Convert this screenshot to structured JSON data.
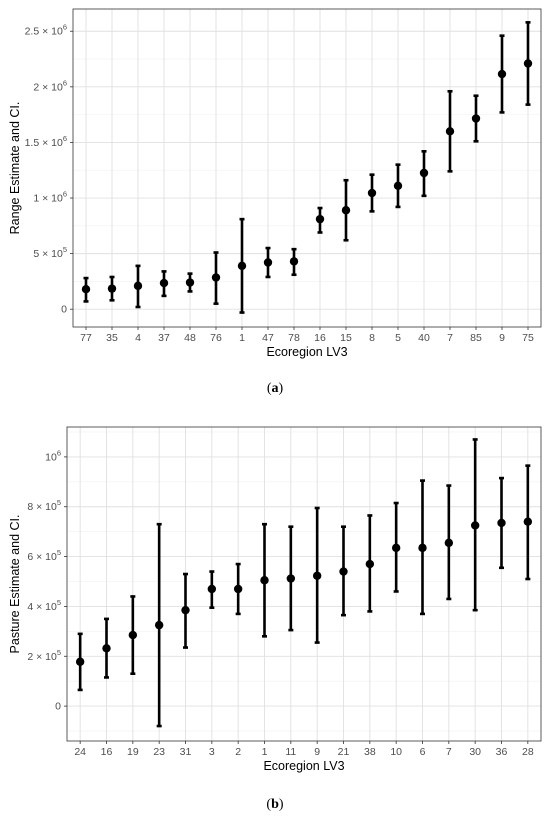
{
  "chart_data": [
    {
      "type": "scatter",
      "xlabel": "Ecoregion LV3",
      "ylabel": "Range Estimate and CI.",
      "caption": "a",
      "categories": [
        "77",
        "35",
        "4",
        "37",
        "48",
        "76",
        "1",
        "47",
        "78",
        "16",
        "15",
        "8",
        "5",
        "40",
        "7",
        "85",
        "9",
        "75"
      ],
      "estimates": [
        180000,
        185000,
        210000,
        235000,
        240000,
        285000,
        390000,
        420000,
        430000,
        810000,
        890000,
        1045000,
        1110000,
        1225000,
        1600000,
        1715000,
        2115000,
        2210000
      ],
      "lower": [
        70000,
        80000,
        20000,
        120000,
        160000,
        50000,
        -30000,
        290000,
        310000,
        690000,
        620000,
        880000,
        920000,
        1020000,
        1240000,
        1510000,
        1770000,
        1840000
      ],
      "upper": [
        280000,
        290000,
        390000,
        340000,
        320000,
        510000,
        810000,
        550000,
        540000,
        910000,
        1160000,
        1210000,
        1300000,
        1420000,
        1960000,
        1920000,
        2460000,
        2580000
      ],
      "yticks": [
        0,
        500000,
        1000000,
        1500000,
        2000000,
        2500000
      ],
      "ytick_labels": [
        {
          "mant": "0",
          "exp": ""
        },
        {
          "mant": "5 × 10",
          "exp": "5"
        },
        {
          "mant": "1 × 10",
          "exp": "6"
        },
        {
          "mant": "1.5 × 10",
          "exp": "6"
        },
        {
          "mant": "2 × 10",
          "exp": "6"
        },
        {
          "mant": "2.5 × 10",
          "exp": "6"
        }
      ],
      "ylim": [
        -160000,
        2700000
      ]
    },
    {
      "type": "scatter",
      "xlabel": "Ecoregion LV3",
      "ylabel": "Pasture Estimate and CI.",
      "caption": "b",
      "categories": [
        "24",
        "16",
        "19",
        "23",
        "31",
        "3",
        "2",
        "1",
        "11",
        "9",
        "21",
        "38",
        "10",
        "6",
        "7",
        "30",
        "36",
        "28"
      ],
      "estimates": [
        178000,
        232000,
        285000,
        325000,
        385000,
        470000,
        470000,
        505000,
        512000,
        523000,
        540000,
        570000,
        635000,
        635000,
        655000,
        725000,
        735000,
        740000
      ],
      "lower": [
        65000,
        115000,
        130000,
        -80000,
        235000,
        395000,
        370000,
        280000,
        305000,
        255000,
        365000,
        380000,
        460000,
        370000,
        430000,
        385000,
        555000,
        510000
      ],
      "upper": [
        290000,
        350000,
        440000,
        730000,
        530000,
        540000,
        570000,
        730000,
        720000,
        795000,
        720000,
        765000,
        815000,
        905000,
        885000,
        1070000,
        915000,
        965000
      ],
      "yticks": [
        0,
        200000,
        400000,
        600000,
        800000,
        1000000
      ],
      "ytick_labels": [
        {
          "mant": "0",
          "exp": ""
        },
        {
          "mant": "2 × 10",
          "exp": "5"
        },
        {
          "mant": "4 × 10",
          "exp": "5"
        },
        {
          "mant": "6 × 10",
          "exp": "5"
        },
        {
          "mant": "8 × 10",
          "exp": "5"
        },
        {
          "mant": "10",
          "exp": "6"
        }
      ],
      "ylim": [
        -140000,
        1120000
      ]
    }
  ]
}
